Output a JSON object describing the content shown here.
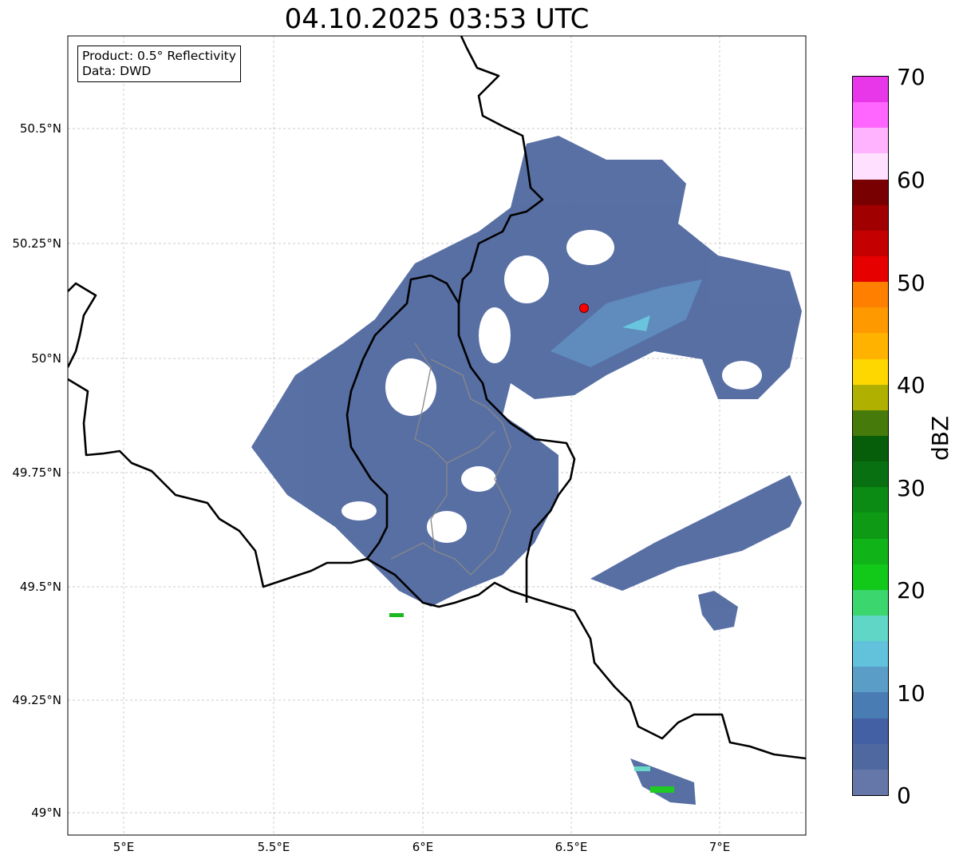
{
  "title": "04.10.2025 03:53 UTC",
  "info_box": {
    "product": "Product: 0.5° Reflectivity",
    "data": "Data: DWD"
  },
  "lat_ticks": [
    "50.5°N",
    "50.25°N",
    "50°N",
    "49.75°N",
    "49.5°N",
    "49.25°N",
    "49°N"
  ],
  "lon_ticks": [
    "5°E",
    "5.5°E",
    "6°E",
    "6.5°E",
    "7°E"
  ],
  "colorbar": {
    "label": "dBZ",
    "ticks": [
      "0",
      "10",
      "20",
      "30",
      "40",
      "50",
      "60",
      "70"
    ],
    "range": [
      0,
      70
    ],
    "step": 2.5,
    "colors": [
      "#6477a8",
      "#5068a0",
      "#4460a4",
      "#4a7cb4",
      "#5a9ec8",
      "#62c2dc",
      "#5fd6c6",
      "#3cd66e",
      "#12c818",
      "#10b418",
      "#0e9a14",
      "#0b8a14",
      "#087010",
      "#065e0a",
      "#467a0a",
      "#b0b000",
      "#ffd700",
      "#ffb300",
      "#ff9900",
      "#ff7f00",
      "#e60000",
      "#c40000",
      "#a00000",
      "#780000",
      "#ffe0ff",
      "#ffb3ff",
      "#ff66ff",
      "#e837e8"
    ]
  },
  "radar_site_color": "#ff0000"
}
